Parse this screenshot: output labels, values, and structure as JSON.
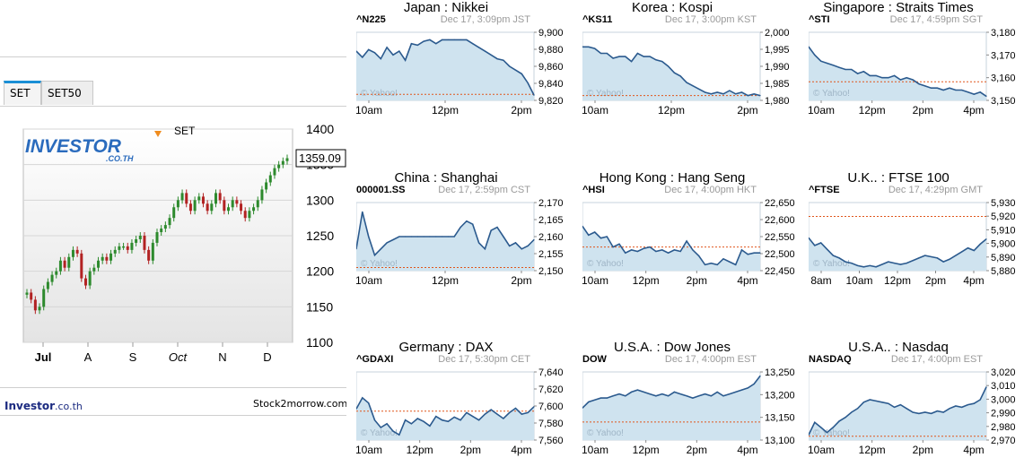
{
  "left": {
    "tabs": [
      "SET",
      "SET50"
    ],
    "footer_brand": "Investor",
    "footer_brand_suffix": ".co.th",
    "footer_right": "Stock2morrow.com",
    "logo_main": "INVESTOR",
    "logo_sub": ".CO.TH"
  },
  "colors": {
    "line": "#2b5a8e",
    "fill": "#cfe3ef",
    "prevclose": "#e0561b",
    "up": "#2d8a2d",
    "down": "#b22222",
    "tab_accent": "#1a8fd6",
    "brand": "#1b2a80"
  },
  "chart_data": [
    {
      "type": "candlestick",
      "title": "SET",
      "last_value_label": "1359.09",
      "x_ticks": [
        "Jul",
        "A",
        "S",
        "Oct",
        "N",
        "D"
      ],
      "ylim": [
        1100,
        1400
      ],
      "y_ticks": [
        1100,
        1150,
        1200,
        1250,
        1300,
        1350,
        1400
      ],
      "grid": true,
      "values": [
        1170,
        1160,
        1145,
        1150,
        1175,
        1185,
        1195,
        1200,
        1215,
        1205,
        1220,
        1230,
        1225,
        1190,
        1180,
        1200,
        1205,
        1215,
        1220,
        1215,
        1225,
        1230,
        1235,
        1235,
        1230,
        1240,
        1245,
        1250,
        1230,
        1215,
        1240,
        1255,
        1260,
        1265,
        1275,
        1290,
        1300,
        1310,
        1295,
        1285,
        1300,
        1305,
        1295,
        1285,
        1295,
        1310,
        1300,
        1285,
        1290,
        1300,
        1295,
        1285,
        1275,
        1285,
        1290,
        1300,
        1315,
        1325,
        1335,
        1345,
        1350,
        1355,
        1359
      ]
    },
    {
      "type": "area",
      "title": "Japan : Nikkei",
      "symbol": "^N225",
      "timestamp": "Dec 17, 3:09pm JST",
      "x_ticks": [
        "10am",
        "12pm",
        "2pm"
      ],
      "y_ticks": [
        "9,900",
        "9,880",
        "9,860",
        "9,840",
        "9,820"
      ],
      "ylim": [
        9815,
        9905
      ],
      "prev_close": 9823,
      "watermark": "© Yahoo!",
      "values": [
        9880,
        9872,
        9882,
        9878,
        9870,
        9885,
        9875,
        9880,
        9868,
        9890,
        9888,
        9893,
        9895,
        9890,
        9895,
        9895,
        9895,
        9895,
        9895,
        9890,
        9885,
        9880,
        9875,
        9870,
        9868,
        9860,
        9855,
        9850,
        9838,
        9822
      ]
    },
    {
      "type": "area",
      "title": "Korea : Kospi",
      "symbol": "^KS11",
      "timestamp": "Dec 17, 3:00pm KST",
      "x_ticks": [
        "10am",
        "12pm",
        "2pm"
      ],
      "y_ticks": [
        "2,000",
        "1,995",
        "1,990",
        "1,985",
        "1,980"
      ],
      "ylim": [
        1979.5,
        2000.5
      ],
      "prev_close": 1981,
      "watermark": "© Yahoo!",
      "values": [
        1996,
        1996,
        1995.5,
        1994,
        1994,
        1992.5,
        1993,
        1993,
        1991.5,
        1994,
        1993,
        1993,
        1992,
        1991.5,
        1990,
        1988,
        1987,
        1985,
        1984,
        1983,
        1982,
        1981.5,
        1982,
        1981.5,
        1982.5,
        1981.5,
        1982,
        1981,
        1981.5,
        1981
      ]
    },
    {
      "type": "area",
      "title": "Singapore : Straits Times",
      "symbol": "^STI",
      "timestamp": "Dec 17, 4:59pm SGT",
      "x_ticks": [
        "10am",
        "12pm",
        "2pm",
        "4pm"
      ],
      "y_ticks": [
        "3,180",
        "3,170",
        "3,160",
        "3,150"
      ],
      "ylim": [
        3148,
        3181
      ],
      "prev_close": 3157,
      "watermark": "© Yahoo!",
      "values": [
        3174,
        3170,
        3167,
        3166,
        3165,
        3164,
        3163,
        3163,
        3161,
        3162,
        3160,
        3160,
        3159,
        3159,
        3160,
        3158,
        3159,
        3158,
        3156,
        3155,
        3154,
        3154,
        3153,
        3154,
        3153,
        3153,
        3152,
        3151,
        3152,
        3150
      ]
    },
    {
      "type": "area",
      "title": "China : Shanghai",
      "symbol": "000001.SS",
      "timestamp": "Dec 17, 2:59pm CST",
      "x_ticks": [
        "10am",
        "12pm",
        "2pm"
      ],
      "y_ticks": [
        "2,170",
        "2,165",
        "2,160",
        "2,155",
        "2,150"
      ],
      "ylim": [
        2149,
        2171
      ],
      "prev_close": 2150,
      "watermark": "© Yahoo!",
      "values": [
        2156,
        2168,
        2160,
        2154,
        2156,
        2158,
        2159,
        2160,
        2160,
        2160,
        2160,
        2160,
        2160,
        2160,
        2160,
        2160,
        2160,
        2163,
        2165,
        2164,
        2158,
        2156,
        2162,
        2163,
        2160,
        2157,
        2158,
        2156,
        2157,
        2159
      ]
    },
    {
      "type": "area",
      "title": "Hong Kong : Hang Seng",
      "symbol": "^HSI",
      "timestamp": "Dec 17, 4:00pm HKT",
      "x_ticks": [
        "10am",
        "12pm",
        "2pm",
        "4pm"
      ],
      "y_ticks": [
        "22,650",
        "22,600",
        "22,550",
        "22,500",
        "22,450"
      ],
      "ylim": [
        22430,
        22660
      ],
      "prev_close": 22510,
      "watermark": "© Yahoo!",
      "values": [
        22580,
        22550,
        22560,
        22540,
        22545,
        22510,
        22520,
        22490,
        22500,
        22495,
        22505,
        22510,
        22495,
        22500,
        22490,
        22500,
        22495,
        22530,
        22500,
        22480,
        22450,
        22455,
        22450,
        22470,
        22460,
        22450,
        22500,
        22485,
        22490,
        22490
      ]
    },
    {
      "type": "area",
      "title": "U.K.. : FTSE 100",
      "symbol": "^FTSE",
      "timestamp": "Dec 17, 4:29pm GMT",
      "x_ticks": [
        "8am",
        "10am",
        "12pm",
        "2pm",
        "4pm"
      ],
      "y_ticks": [
        "5,930",
        "5,920",
        "5,910",
        "5,900",
        "5,890",
        "5,880"
      ],
      "ylim": [
        5878,
        5932
      ],
      "prev_close": 5921,
      "watermark": "© Yahoo!",
      "values": [
        5904,
        5898,
        5900,
        5895,
        5890,
        5888,
        5885,
        5884,
        5882,
        5881,
        5882,
        5881,
        5883,
        5885,
        5884,
        5883,
        5884,
        5886,
        5888,
        5890,
        5889,
        5888,
        5885,
        5887,
        5890,
        5893,
        5896,
        5894,
        5899,
        5903
      ]
    },
    {
      "type": "area",
      "title": "Germany : DAX",
      "symbol": "^GDAXI",
      "timestamp": "Dec 17, 5:30pm CET",
      "x_ticks": [
        "10am",
        "12pm",
        "2pm",
        "4pm"
      ],
      "y_ticks": [
        "7,640",
        "7,620",
        "7,600",
        "7,580",
        "7,560"
      ],
      "ylim": [
        7553,
        7645
      ],
      "prev_close": 7592,
      "watermark": "© Yahoo!",
      "values": [
        7595,
        7610,
        7603,
        7580,
        7570,
        7575,
        7565,
        7560,
        7580,
        7575,
        7582,
        7578,
        7572,
        7585,
        7580,
        7578,
        7584,
        7580,
        7590,
        7585,
        7580,
        7588,
        7594,
        7588,
        7582,
        7590,
        7596,
        7588,
        7590,
        7598
      ]
    },
    {
      "type": "area",
      "title": "U.S.A. : Dow Jones",
      "symbol": "DOW",
      "timestamp": "Dec 17, 4:00pm EST",
      "x_ticks": [
        "10am",
        "12pm",
        "2pm",
        "4pm"
      ],
      "y_ticks": [
        "13,250",
        "13,200",
        "13,150",
        "13,100"
      ],
      "ylim": [
        13090,
        13260
      ],
      "prev_close": 13135,
      "watermark": "© Yahoo!",
      "values": [
        13170,
        13185,
        13190,
        13195,
        13195,
        13200,
        13205,
        13200,
        13210,
        13215,
        13210,
        13205,
        13200,
        13205,
        13200,
        13210,
        13205,
        13200,
        13195,
        13200,
        13205,
        13200,
        13210,
        13200,
        13205,
        13210,
        13215,
        13220,
        13230,
        13250
      ]
    },
    {
      "type": "area",
      "title": "U.S.A.. : Nasdaq",
      "symbol": "NASDAQ",
      "timestamp": "Dec 17, 4:00pm EST",
      "x_ticks": [
        "10am",
        "12pm",
        "2pm",
        "4pm"
      ],
      "y_ticks": [
        "3,020",
        "3,010",
        "3,000",
        "2,990",
        "2,980",
        "2,970"
      ],
      "ylim": [
        2968,
        3022
      ],
      "prev_close": 2971,
      "watermark": "© Yahoo!",
      "values": [
        2972,
        2982,
        2978,
        2974,
        2978,
        2983,
        2986,
        2990,
        2993,
        2998,
        3000,
        2999,
        2998,
        2997,
        2994,
        2996,
        2993,
        2990,
        2989,
        2990,
        2989,
        2991,
        2990,
        2993,
        2995,
        2994,
        2996,
        2997,
        3000,
        3010
      ]
    }
  ]
}
